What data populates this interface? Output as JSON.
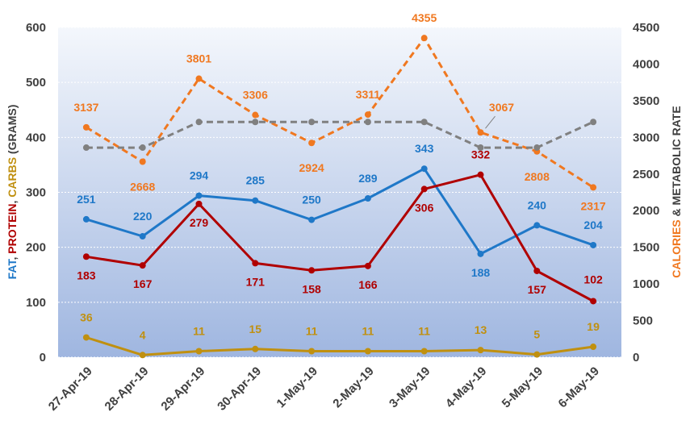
{
  "chart_data": {
    "type": "line",
    "categories": [
      "27-Apr-19",
      "28-Apr-19",
      "29-Apr-19",
      "30-Apr-19",
      "1-May-19",
      "2-May-19",
      "3-May-19",
      "4-May-19",
      "5-May-19",
      "6-May-19"
    ],
    "left_axis": {
      "title_parts": [
        {
          "text": "FAT",
          "color": "#1f78c8"
        },
        {
          "text": ", ",
          "color": "#404040"
        },
        {
          "text": "PROTEIN",
          "color": "#b00000"
        },
        {
          "text": ", ",
          "color": "#404040"
        },
        {
          "text": "CARBS",
          "color": "#c09010"
        },
        {
          "text": " (GRAMS)",
          "color": "#404040"
        }
      ],
      "ylim": [
        0,
        600
      ],
      "ticks": [
        0,
        100,
        200,
        300,
        400,
        500,
        600
      ]
    },
    "right_axis": {
      "title_parts": [
        {
          "text": "CALORIES",
          "color": "#f07820"
        },
        {
          "text": " & METABOLIC RATE",
          "color": "#404040"
        }
      ],
      "ylim": [
        0,
        4500
      ],
      "ticks": [
        0,
        500,
        1000,
        1500,
        2000,
        2500,
        3000,
        3500,
        4000,
        4500
      ],
      "tick_color": "#f07820"
    },
    "series": [
      {
        "key": "fat",
        "axis": "left",
        "color": "#1f78c8",
        "dashed": false,
        "labels": true,
        "values": [
          251,
          220,
          294,
          285,
          250,
          289,
          343,
          188,
          240,
          204
        ]
      },
      {
        "key": "protein",
        "axis": "left",
        "color": "#b00000",
        "dashed": false,
        "labels": true,
        "values": [
          183,
          167,
          279,
          171,
          158,
          166,
          306,
          332,
          157,
          102
        ]
      },
      {
        "key": "carbs",
        "axis": "left",
        "color": "#c09010",
        "dashed": false,
        "labels": true,
        "values": [
          36,
          4,
          11,
          15,
          11,
          11,
          11,
          13,
          5,
          19
        ]
      },
      {
        "key": "calories",
        "axis": "right",
        "color": "#f07820",
        "dashed": true,
        "labels": true,
        "values": [
          3137,
          2668,
          3801,
          3306,
          2924,
          3311,
          4355,
          3067,
          2808,
          2317
        ]
      },
      {
        "key": "metabolic_rate",
        "axis": "right",
        "color": "#808080",
        "dashed": true,
        "labels": false,
        "values": [
          2860,
          2860,
          3210,
          3210,
          3210,
          3210,
          3210,
          2860,
          2860,
          3210
        ]
      }
    ],
    "grid": true
  }
}
